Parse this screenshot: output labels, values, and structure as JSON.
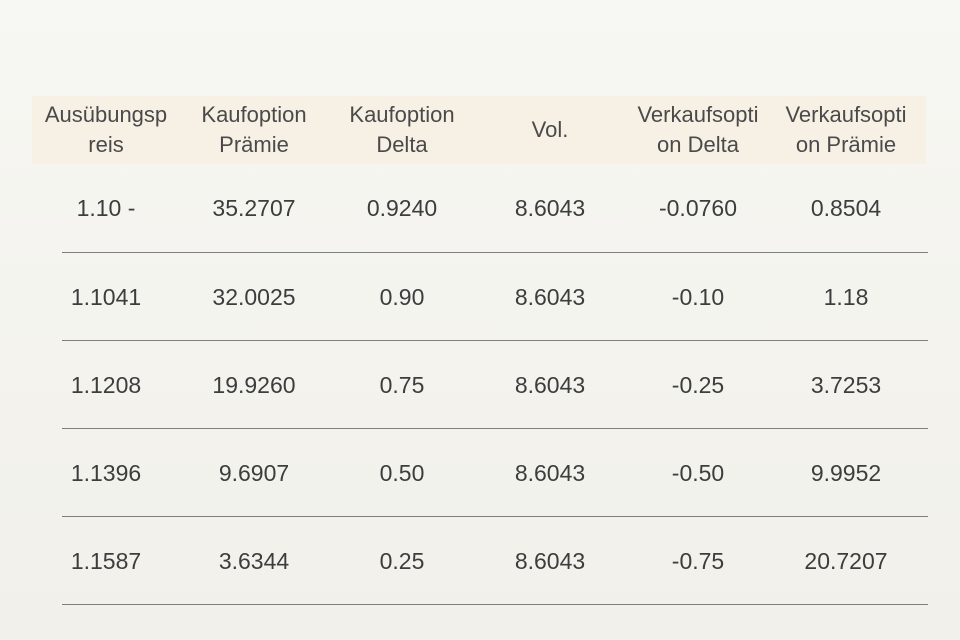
{
  "table": {
    "headers": [
      "Ausübungsp\nreis",
      "Kaufoption\nPrämie",
      "Kaufoption\nDelta",
      "Vol.",
      "Verkaufsopti\non Delta",
      "Verkaufsopti\non Prämie"
    ],
    "rows": [
      [
        "1.10 -",
        "35.2707",
        "0.9240",
        "8.6043",
        "-0.0760",
        "0.8504"
      ],
      [
        "1.1041",
        "32.0025",
        "0.90",
        "8.6043",
        "-0.10",
        "1.18"
      ],
      [
        "1.1208",
        "19.9260",
        "0.75",
        "8.6043",
        "-0.25",
        "3.7253"
      ],
      [
        "1.1396",
        "9.6907",
        "0.50",
        "8.6043",
        "-0.50",
        "9.9952"
      ],
      [
        "1.1587",
        "3.6344",
        "0.25",
        "8.6043",
        "-0.75",
        "20.7207"
      ]
    ]
  }
}
